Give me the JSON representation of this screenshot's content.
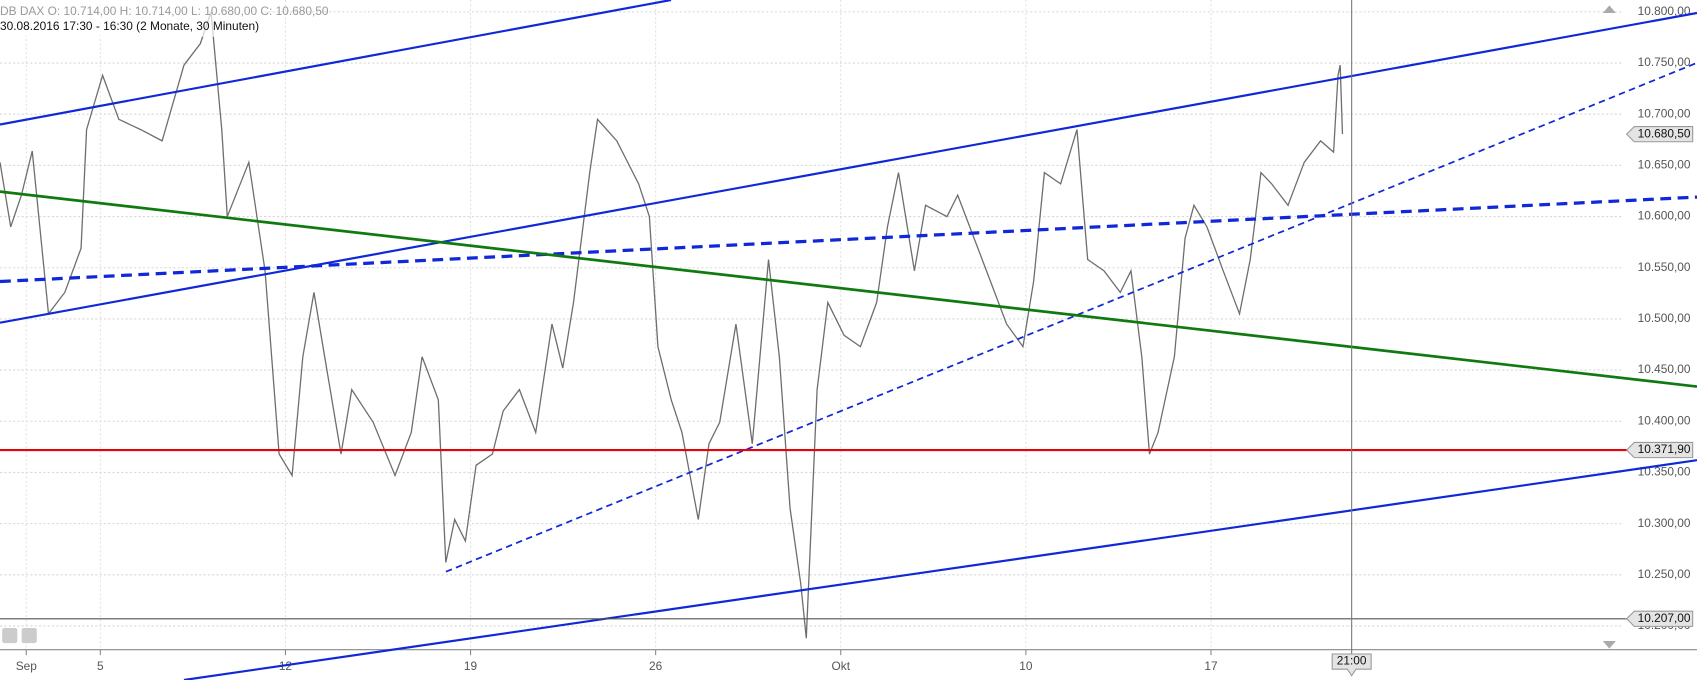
{
  "chart_data": {
    "type": "line",
    "title": "DB DAX",
    "subtitle": "O: 10.714,00  H: 10.714,00  L: 10.680,00  C: 10.680,50",
    "note": "30.08.2016 17:30 - 16:30 (2 Monate, 30 Minuten)",
    "x": [
      1.29,
      1.58,
      1.87,
      2.16,
      2.6,
      3.04,
      3.48,
      3.63,
      4.06,
      4.5,
      5.09,
      5.67,
      6.26,
      6.7,
      6.99,
      7.28,
      7.43,
      8.01,
      8.45,
      8.83,
      9.18,
      9.47,
      9.77,
      10.06,
      10.5,
      10.79,
      11.37,
      11.96,
      12.4,
      12.69,
      13.13,
      13.33,
      13.57,
      13.86,
      14.15,
      14.59,
      14.88,
      15.32,
      15.76,
      16.2,
      16.49,
      16.78,
      17.22,
      17.43,
      17.95,
      18.54,
      18.83,
      19.06,
      19.42,
      19.71,
      20.15,
      20.44,
      20.73,
      21.17,
      21.61,
      22.05,
      22.34,
      22.63,
      22.92,
      23.07,
      23.36,
      23.65,
      24.09,
      24.53,
      24.97,
      25.26,
      25.56,
      25.99,
      26.29,
      26.87,
      27.16,
      27.6,
      28.04,
      28.48,
      28.92,
      29.21,
      29.5,
      29.94,
      30.38,
      30.67,
      31.11,
      31.55,
      31.84,
      32.13,
      32.34,
      32.57,
      33.01,
      33.3,
      33.54,
      33.89,
      34.33,
      34.77,
      35.06,
      35.35,
      35.64,
      36.08,
      36.52,
      36.96,
      37.31,
      37.43,
      37.49,
      37.55
    ],
    "series": [
      {
        "name": "DB DAX",
        "color": "#6e6e6e",
        "values": [
          10653,
          10590,
          10621,
          10664,
          10505,
          10526,
          10569,
          10685,
          10738,
          10695,
          10685,
          10674,
          10748,
          10769,
          10800,
          10685,
          10600,
          10653,
          10547,
          10368,
          10347,
          10463,
          10526,
          10463,
          10368,
          10431,
          10399,
          10347,
          10389,
          10463,
          10421,
          10262,
          10304,
          10283,
          10357,
          10368,
          10410,
          10431,
          10389,
          10495,
          10452,
          10516,
          10643,
          10695,
          10674,
          10632,
          10600,
          10473,
          10421,
          10389,
          10304,
          10378,
          10399,
          10495,
          10378,
          10558,
          10463,
          10315,
          10241,
          10188,
          10431,
          10516,
          10484,
          10473,
          10516,
          10590,
          10643,
          10547,
          10611,
          10600,
          10621,
          10579,
          10537,
          10495,
          10473,
          10537,
          10643,
          10632,
          10685,
          10558,
          10547,
          10526,
          10547,
          10463,
          10368,
          10389,
          10463,
          10579,
          10611,
          10590,
          10547,
          10505,
          10558,
          10643,
          10632,
          10611,
          10653,
          10674,
          10663,
          10738,
          10748,
          10680.5
        ]
      }
    ],
    "xlim": [
      1.29,
      45.14
    ],
    "ylim": [
      10180,
      10811.6
    ],
    "xticks": [
      {
        "value": 2,
        "label": "Sep"
      },
      {
        "value": 4,
        "label": "5"
      },
      {
        "value": 9,
        "label": "12"
      },
      {
        "value": 14,
        "label": "19"
      },
      {
        "value": 19,
        "label": "26"
      },
      {
        "value": 24,
        "label": "Okt"
      },
      {
        "value": 29,
        "label": "10"
      },
      {
        "value": 34,
        "label": "17"
      }
    ],
    "yticks": [
      {
        "value": 10200,
        "label": "10.200,00"
      },
      {
        "value": 10250,
        "label": "10.250,00"
      },
      {
        "value": 10300,
        "label": "10.300,00"
      },
      {
        "value": 10350,
        "label": "10.350,00"
      },
      {
        "value": 10400,
        "label": "10.400,00"
      },
      {
        "value": 10450,
        "label": "10.450,00"
      },
      {
        "value": 10500,
        "label": "10.500,00"
      },
      {
        "value": 10550,
        "label": "10.550,00"
      },
      {
        "value": 10600,
        "label": "10.600,00"
      },
      {
        "value": 10650,
        "label": "10.650,00"
      },
      {
        "value": 10700,
        "label": "10.700,00"
      },
      {
        "value": 10750,
        "label": "10.750,00"
      },
      {
        "value": 10800,
        "label": "10.800,00"
      }
    ],
    "grid": true,
    "markers": [
      {
        "value": 10680.5,
        "label": "10.680,50"
      },
      {
        "value": 10371.9,
        "label": "10.371,90",
        "color": "#e8000b"
      },
      {
        "value": 10207,
        "label": "10.207,00",
        "color": "#555555"
      }
    ],
    "crosshair": {
      "value": 37.8,
      "label": "21:00"
    }
  }
}
